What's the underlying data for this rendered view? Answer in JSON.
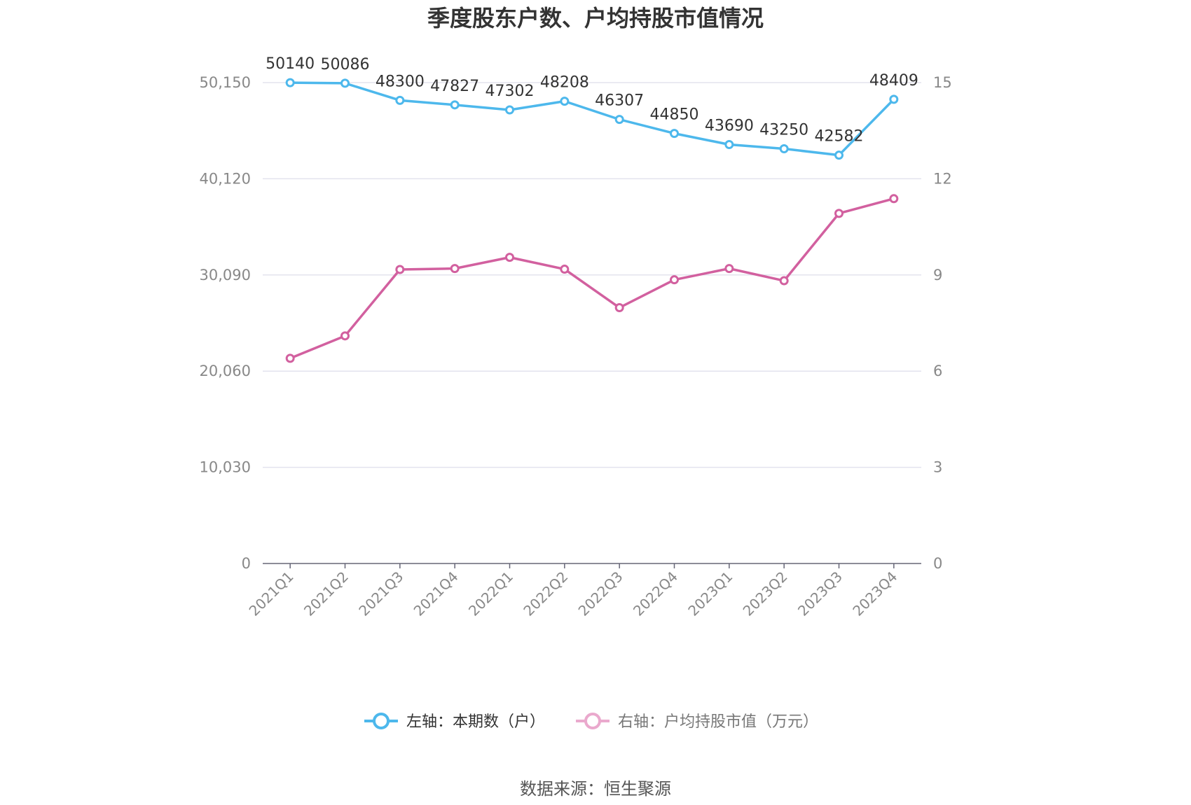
{
  "chart_data": {
    "type": "line",
    "title": "季度股东户数、户均持股市值情况",
    "categories": [
      "2021Q1",
      "2021Q2",
      "2021Q3",
      "2021Q4",
      "2022Q1",
      "2022Q2",
      "2022Q3",
      "2022Q4",
      "2023Q1",
      "2023Q2",
      "2023Q3",
      "2023Q4"
    ],
    "left_axis": {
      "ylim": [
        0,
        50150
      ],
      "ticks": [
        "0",
        "10,030",
        "20,060",
        "30,090",
        "40,120",
        "50,150"
      ]
    },
    "right_axis": {
      "ylim": [
        0,
        15
      ],
      "ticks": [
        "0",
        "3",
        "6",
        "9",
        "12",
        "15"
      ]
    },
    "grid": true,
    "legend_position": "bottom",
    "series": [
      {
        "name": "左轴：本期数（户）",
        "axis": "left",
        "color": "#4db8ec",
        "values": [
          50140,
          50086,
          48300,
          47827,
          47302,
          48208,
          46307,
          44850,
          43690,
          43250,
          42582,
          48409
        ],
        "labels": [
          "50140",
          "50086",
          "48300",
          "47827",
          "47302",
          "48208",
          "46307",
          "44850",
          "43690",
          "43250",
          "42582",
          "48409"
        ]
      },
      {
        "name": "右轴：户均持股市值（万元）",
        "axis": "right",
        "color": "#d2609f",
        "values": [
          6.4,
          7.1,
          9.17,
          9.2,
          9.55,
          9.18,
          7.98,
          8.85,
          9.2,
          8.82,
          10.92,
          11.38
        ]
      }
    ]
  },
  "footer": {
    "source": "数据来源：恒生聚源"
  }
}
